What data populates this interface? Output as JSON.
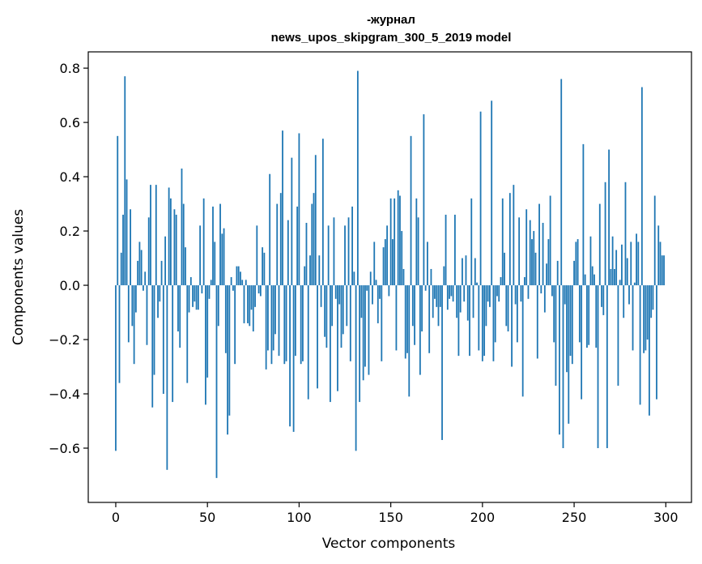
{
  "chart_data": {
    "type": "bar",
    "title": "-журнал",
    "subtitle": "news_upos_skipgram_300_5_2019 model",
    "xlabel": "Vector components",
    "ylabel": "Components values",
    "xlim": [
      -15,
      314
    ],
    "ylim": [
      -0.8,
      0.86
    ],
    "xticks": [
      0,
      50,
      100,
      150,
      200,
      250,
      300
    ],
    "xtick_labels": [
      "0",
      "50",
      "100",
      "150",
      "200",
      "250",
      "300"
    ],
    "yticks": [
      -0.6,
      -0.4,
      -0.2,
      0.0,
      0.2,
      0.4,
      0.6,
      0.8
    ],
    "ytick_labels": [
      "−0.6",
      "−0.4",
      "−0.2",
      "0.0",
      "0.2",
      "0.4",
      "0.6",
      "0.8"
    ],
    "grid": false,
    "color": "#1f77b4",
    "x_start": 0,
    "values": [
      -0.61,
      0.55,
      -0.36,
      0.12,
      0.26,
      0.77,
      0.39,
      -0.21,
      0.28,
      -0.15,
      -0.29,
      -0.1,
      0.09,
      0.16,
      0.13,
      -0.02,
      0.05,
      -0.22,
      0.25,
      0.37,
      -0.45,
      -0.33,
      0.37,
      -0.12,
      -0.06,
      0.09,
      -0.4,
      0.18,
      -0.68,
      0.36,
      0.32,
      -0.43,
      0.28,
      0.26,
      -0.17,
      -0.23,
      0.43,
      0.3,
      0.14,
      -0.36,
      -0.1,
      0.03,
      -0.08,
      -0.06,
      -0.09,
      -0.09,
      0.22,
      -0.03,
      0.32,
      -0.44,
      -0.34,
      -0.05,
      0.02,
      0.29,
      0.16,
      -0.71,
      -0.15,
      0.3,
      0.19,
      0.21,
      -0.25,
      -0.55,
      -0.48,
      0.03,
      -0.02,
      -0.29,
      0.07,
      0.07,
      0.05,
      0.02,
      -0.14,
      0.02,
      -0.14,
      -0.15,
      -0.09,
      -0.17,
      -0.08,
      0.22,
      -0.03,
      -0.04,
      0.14,
      0.12,
      -0.31,
      -0.24,
      0.41,
      -0.29,
      -0.24,
      -0.18,
      0.3,
      -0.26,
      0.34,
      0.57,
      -0.29,
      -0.28,
      0.24,
      -0.52,
      0.47,
      -0.54,
      -0.26,
      0.29,
      0.56,
      -0.29,
      -0.28,
      0.07,
      0.23,
      -0.42,
      0.11,
      0.3,
      0.34,
      0.48,
      -0.38,
      0.11,
      -0.08,
      0.54,
      -0.19,
      -0.23,
      0.22,
      -0.43,
      -0.15,
      0.25,
      -0.05,
      -0.39,
      -0.07,
      -0.23,
      -0.18,
      0.22,
      -0.15,
      0.25,
      -0.28,
      0.29,
      0.05,
      -0.61,
      0.79,
      -0.43,
      -0.12,
      -0.35,
      -0.3,
      -0.02,
      -0.33,
      0.05,
      -0.07,
      0.16,
      0.02,
      -0.14,
      -0.05,
      -0.28,
      0.14,
      0.17,
      0.22,
      -0.04,
      0.32,
      0.17,
      0.32,
      -0.24,
      0.35,
      0.33,
      0.2,
      0.06,
      -0.27,
      -0.25,
      -0.41,
      0.55,
      -0.15,
      -0.22,
      0.32,
      0.25,
      -0.33,
      -0.17,
      0.63,
      -0.02,
      0.16,
      -0.25,
      0.06,
      -0.12,
      -0.05,
      -0.08,
      -0.15,
      -0.08,
      -0.57,
      0.07,
      0.26,
      -0.09,
      -0.05,
      -0.04,
      -0.06,
      0.26,
      -0.12,
      -0.26,
      -0.1,
      0.1,
      -0.06,
      0.11,
      -0.13,
      -0.26,
      0.32,
      -0.12,
      0.1,
      0.01,
      -0.24,
      0.64,
      -0.28,
      -0.26,
      -0.15,
      -0.06,
      -0.08,
      0.68,
      -0.28,
      -0.21,
      -0.04,
      -0.06,
      0.03,
      0.32,
      0.12,
      -0.15,
      -0.17,
      0.34,
      -0.3,
      0.37,
      -0.07,
      -0.21,
      0.25,
      -0.06,
      -0.41,
      0.03,
      0.28,
      -0.05,
      0.24,
      0.17,
      0.2,
      0.12,
      -0.27,
      0.3,
      -0.03,
      0.23,
      -0.1,
      0.08,
      0.17,
      0.33,
      -0.04,
      -0.21,
      -0.37,
      0.09,
      -0.55,
      0.76,
      -0.6,
      -0.07,
      -0.32,
      -0.51,
      -0.26,
      -0.29,
      0.09,
      0.16,
      0.17,
      -0.21,
      -0.42,
      0.52,
      0.04,
      -0.23,
      -0.22,
      0.18,
      0.07,
      0.04,
      -0.23,
      -0.6,
      0.3,
      -0.08,
      -0.11,
      0.38,
      -0.6,
      0.5,
      0.06,
      0.18,
      0.06,
      0.13,
      -0.37,
      0.02,
      0.15,
      -0.12,
      0.38,
      0.1,
      -0.07,
      0.16,
      -0.24,
      0.01,
      0.19,
      0.16,
      -0.44,
      0.73,
      -0.25,
      -0.24,
      -0.2,
      -0.48,
      -0.12,
      -0.09,
      0.33,
      -0.42,
      0.22,
      0.16,
      0.11,
      0.11
    ]
  }
}
